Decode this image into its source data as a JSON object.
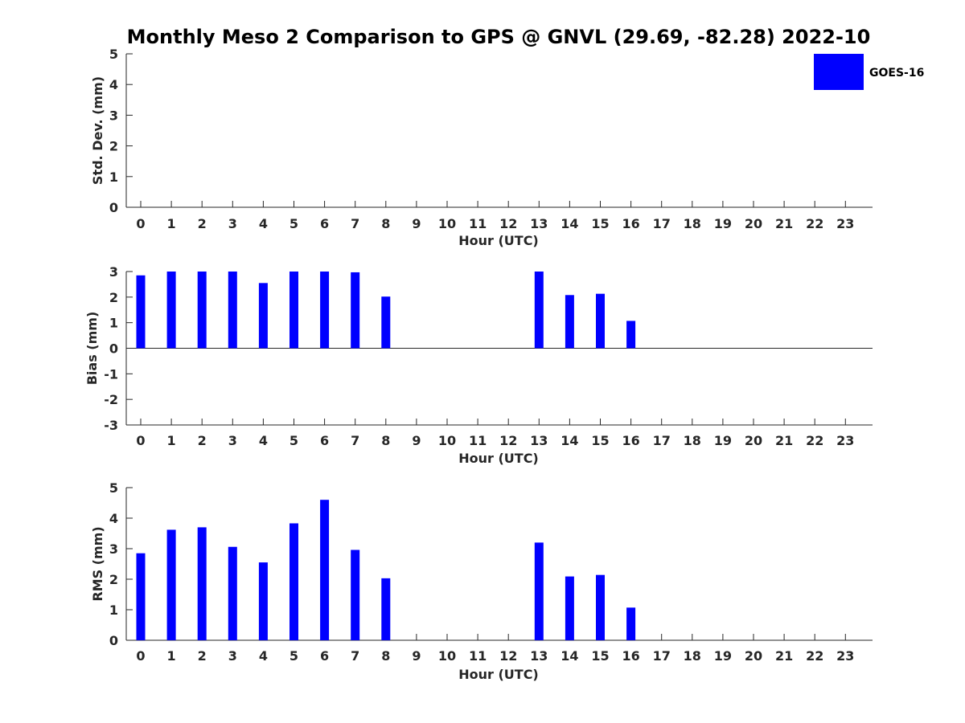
{
  "chart_data": {
    "title": "Monthly Meso 2 Comparison to GPS @ GNVL (29.69, -82.28) 2022-10",
    "colors": {
      "bar": "#0000ff",
      "axis": "#262626",
      "background": "#ffffff"
    },
    "legend": {
      "position": "top-right",
      "entries": [
        {
          "name": "GOES-16",
          "color": "#0000ff"
        }
      ]
    },
    "panels": [
      {
        "type": "bar",
        "ylabel": "Std. Dev. (mm)",
        "xlabel": "Hour (UTC)",
        "ylim": [
          0,
          5
        ],
        "yticks": [
          0,
          1,
          2,
          3,
          4,
          5
        ],
        "categories": [
          "0",
          "1",
          "2",
          "3",
          "4",
          "5",
          "6",
          "7",
          "8",
          "9",
          "10",
          "11",
          "12",
          "13",
          "14",
          "15",
          "16",
          "17",
          "18",
          "19",
          "20",
          "21",
          "22",
          "23"
        ],
        "series": [
          {
            "name": "GOES-16",
            "values": [
              null,
              null,
              null,
              null,
              null,
              null,
              null,
              null,
              null,
              null,
              null,
              null,
              null,
              null,
              null,
              null,
              null,
              null,
              null,
              null,
              null,
              null,
              null,
              null
            ]
          }
        ]
      },
      {
        "type": "bar",
        "ylabel": "Bias (mm)",
        "xlabel": "Hour (UTC)",
        "ylim": [
          -3,
          3
        ],
        "yticks": [
          -3,
          -2,
          -1,
          0,
          1,
          2,
          3
        ],
        "categories": [
          "0",
          "1",
          "2",
          "3",
          "4",
          "5",
          "6",
          "7",
          "8",
          "9",
          "10",
          "11",
          "12",
          "13",
          "14",
          "15",
          "16",
          "17",
          "18",
          "19",
          "20",
          "21",
          "22",
          "23"
        ],
        "series": [
          {
            "name": "GOES-16",
            "values": [
              2.85,
              3.0,
              3.0,
              3.0,
              2.55,
              3.0,
              3.0,
              2.97,
              2.02,
              null,
              null,
              null,
              null,
              3.0,
              2.08,
              2.13,
              1.07,
              null,
              null,
              null,
              null,
              null,
              null,
              null
            ]
          }
        ]
      },
      {
        "type": "bar",
        "ylabel": "RMS (mm)",
        "xlabel": "Hour (UTC)",
        "ylim": [
          0,
          5
        ],
        "yticks": [
          0,
          1,
          2,
          3,
          4,
          5
        ],
        "categories": [
          "0",
          "1",
          "2",
          "3",
          "4",
          "5",
          "6",
          "7",
          "8",
          "9",
          "10",
          "11",
          "12",
          "13",
          "14",
          "15",
          "16",
          "17",
          "18",
          "19",
          "20",
          "21",
          "22",
          "23"
        ],
        "series": [
          {
            "name": "GOES-16",
            "values": [
              2.85,
              3.62,
              3.7,
              3.06,
              2.55,
              3.83,
              4.6,
              2.96,
              2.03,
              null,
              null,
              null,
              null,
              3.2,
              2.09,
              2.14,
              1.07,
              null,
              null,
              null,
              null,
              null,
              null,
              null
            ]
          }
        ]
      }
    ]
  }
}
